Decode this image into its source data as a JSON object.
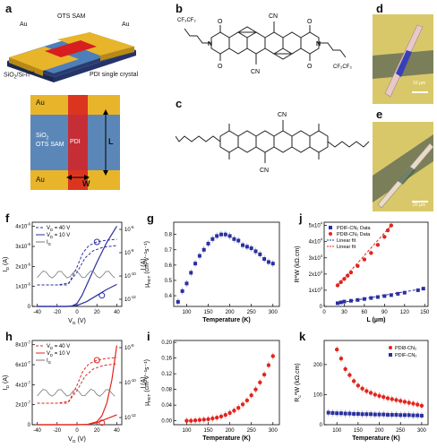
{
  "panels": {
    "a": {
      "letter": "a",
      "top_labels": {
        "au_left": "Au",
        "au_right": "Au",
        "ots_sam": "OTS SAM",
        "substrate": "SiO",
        "substrate_sub": "2",
        "substrate_rest": "/Si-n",
        "substrate_sup": "++",
        "pdi_crystal": "PDI single crystal"
      },
      "bottom_labels": {
        "au_top": "Au",
        "au_bottom": "Au",
        "sio2": "SiO",
        "sio2_sub": "2",
        "ots": "OTS SAM",
        "pdi": "PDI",
        "length": "L",
        "width": "W"
      }
    },
    "b": {
      "letter": "b",
      "substituent": "CF",
      "cn": "CN",
      "cf2": "F",
      "cf3": "F"
    },
    "c": {
      "letter": "c",
      "cn": "CN"
    },
    "d": {
      "letter": "d",
      "scale_bar": "10 µm"
    },
    "e": {
      "letter": "e",
      "scale_bar": "20 µm"
    },
    "f": {
      "letter": "f"
    },
    "g": {
      "letter": "g"
    },
    "h": {
      "letter": "h"
    },
    "i": {
      "letter": "i"
    },
    "j": {
      "letter": "j"
    },
    "k": {
      "letter": "k"
    }
  },
  "colors": {
    "au": "#e8b52a",
    "sio2": "#5b87b8",
    "pdi": "#d81e1e",
    "blue": "#2a2f9e",
    "red": "#e0261f",
    "grey": "#777777"
  },
  "chart_data": [
    {
      "id": "f",
      "type": "line",
      "xlabel": "V",
      "xlabel_sub": "G",
      "xlabel_unit": " (V)",
      "ylabel": "I",
      "ylabel_sub": "D",
      "ylabel_unit": " (A)",
      "y2label": "I (A)",
      "xticks": [
        "-40",
        "-20",
        "0",
        "20",
        "40"
      ],
      "yticks": [
        "0",
        "1x10",
        "2x10",
        "3x10",
        "4x10"
      ],
      "ytick_sup": "-6",
      "y2ticks": [
        "10",
        "10",
        "10",
        "10"
      ],
      "y2tick_sups": [
        "-6",
        "-8",
        "-10",
        "-12"
      ],
      "legend": [
        {
          "label": "V",
          "sub": "D",
          "rest": " = 40 V"
        },
        {
          "label": "V",
          "sub": "D",
          "rest": " = 10 V"
        },
        {
          "label": "I",
          "sub": "G",
          "rest": ""
        }
      ],
      "xlim": [
        -45,
        45
      ],
      "ylim": [
        0,
        4.2e-06
      ],
      "series": [
        {
          "name": "V_D = 40 V linear",
          "style": "solid",
          "x": [
            -40,
            -20,
            -10,
            -5,
            0,
            5,
            10,
            20,
            30,
            40
          ],
          "y": [
            0,
            0,
            0,
            2e-08,
            1.5e-07,
            5.5e-07,
            1.1e-06,
            2.2e-06,
            3.2e-06,
            4e-06
          ]
        },
        {
          "name": "V_D = 10 V linear",
          "style": "solid",
          "x": [
            -40,
            -20,
            -10,
            0,
            10,
            20,
            30,
            40
          ],
          "y": [
            0,
            0,
            0,
            5e-08,
            2.5e-07,
            5.5e-07,
            8.5e-07,
            1.1e-06
          ]
        }
      ]
    },
    {
      "id": "g",
      "type": "scatter",
      "xlabel": "Temperature (K)",
      "ylabel": "μ",
      "ylabel_sub": "FET",
      "ylabel_unit": " (cm²V⁻¹s⁻¹)",
      "xticks": [
        "100",
        "150",
        "200",
        "250",
        "300"
      ],
      "yticks": [
        "0.4",
        "0.5",
        "0.6",
        "0.7",
        "0.8"
      ],
      "xlim": [
        70,
        315
      ],
      "ylim": [
        0.33,
        0.88
      ],
      "x": [
        80,
        90,
        100,
        110,
        120,
        130,
        140,
        150,
        160,
        170,
        180,
        190,
        200,
        210,
        220,
        230,
        240,
        250,
        260,
        270,
        280,
        290,
        300
      ],
      "y": [
        0.36,
        0.43,
        0.48,
        0.55,
        0.61,
        0.66,
        0.7,
        0.74,
        0.77,
        0.79,
        0.8,
        0.8,
        0.79,
        0.77,
        0.76,
        0.73,
        0.72,
        0.71,
        0.69,
        0.67,
        0.64,
        0.62,
        0.61
      ]
    },
    {
      "id": "h",
      "type": "line",
      "xlabel": "V",
      "xlabel_sub": "G",
      "xlabel_unit": " (V)",
      "ylabel": "I",
      "ylabel_sub": "D",
      "ylabel_unit": " (A)",
      "y2label": "I (A)",
      "xticks": [
        "-40",
        "-20",
        "0",
        "20",
        "40"
      ],
      "yticks": [
        "0",
        "2x10",
        "4x10",
        "6x10",
        "8x10"
      ],
      "ytick_sup": "-7",
      "y2ticks": [
        "10",
        "10",
        "10"
      ],
      "y2tick_sups": [
        "-8",
        "-10",
        "-12"
      ],
      "legend": [
        {
          "label": "V",
          "sub": "D",
          "rest": " = 40 V"
        },
        {
          "label": "V",
          "sub": "D",
          "rest": " = 10 V"
        },
        {
          "label": "I",
          "sub": "G",
          "rest": ""
        }
      ],
      "xlim": [
        -45,
        45
      ],
      "ylim": [
        0,
        8.5e-07
      ],
      "series": [
        {
          "name": "V_D = 40 V linear",
          "style": "solid",
          "x": [
            -40,
            0,
            10,
            20,
            25,
            30,
            35,
            40
          ],
          "y": [
            0,
            0,
            2e-09,
            3e-08,
            9e-08,
            2.2e-07,
            4.5e-07,
            8e-07
          ]
        },
        {
          "name": "V_D = 10 V linear",
          "style": "solid",
          "x": [
            -40,
            0,
            10,
            20,
            30,
            40
          ],
          "y": [
            0,
            0,
            2e-09,
            2e-08,
            6e-08,
            1e-07
          ]
        }
      ]
    },
    {
      "id": "i",
      "type": "scatter",
      "xlabel": "Temperature (K)",
      "ylabel": "μ",
      "ylabel_sub": "FET",
      "ylabel_unit": " (cm²V⁻¹s⁻¹)",
      "xticks": [
        "100",
        "150",
        "200",
        "250",
        "300"
      ],
      "yticks": [
        "0.00",
        "0.04",
        "0.08",
        "0.12",
        "0.16",
        "0.20"
      ],
      "xlim": [
        70,
        315
      ],
      "ylim": [
        -0.01,
        0.205
      ],
      "x": [
        100,
        110,
        120,
        130,
        140,
        150,
        160,
        170,
        180,
        190,
        200,
        210,
        220,
        230,
        240,
        250,
        260,
        270,
        280,
        290,
        300
      ],
      "y": [
        0.0,
        0.0,
        0.001,
        0.002,
        0.003,
        0.004,
        0.006,
        0.008,
        0.011,
        0.015,
        0.02,
        0.026,
        0.033,
        0.042,
        0.052,
        0.065,
        0.08,
        0.098,
        0.118,
        0.142,
        0.165
      ]
    },
    {
      "id": "j",
      "type": "scatter",
      "xlabel": "L (µm)",
      "ylabel": "R*W (kΩ.cm)",
      "xticks": [
        "0",
        "30",
        "60",
        "90",
        "120",
        "150"
      ],
      "yticks": [
        "0",
        "1x10",
        "2x10",
        "3x10",
        "4x10",
        "5x10"
      ],
      "ytick_sup": "4",
      "xlim": [
        0,
        155
      ],
      "ylim": [
        0,
        52000
      ],
      "legend": [
        "PDIF-CN₂ Data",
        "PDI8-CN₂ Data",
        "Linear fit",
        "Linear fit"
      ],
      "series": [
        {
          "name": "PDIF-CN₂ Data",
          "x": [
            20,
            25,
            30,
            40,
            50,
            60,
            70,
            80,
            90,
            100,
            110,
            120,
            140,
            148
          ],
          "y": [
            2000,
            2500,
            3000,
            3500,
            4000,
            4600,
            5200,
            5800,
            6400,
            7000,
            7800,
            8500,
            10000,
            11000
          ]
        },
        {
          "name": "PDI8-CN₂ Data",
          "x": [
            20,
            25,
            30,
            35,
            40,
            50,
            60,
            70,
            80,
            90,
            95,
            100
          ],
          "y": [
            13000,
            15000,
            17000,
            19000,
            21000,
            25000,
            29000,
            33000,
            38000,
            43000,
            47000,
            50000
          ]
        }
      ]
    },
    {
      "id": "k",
      "type": "scatter",
      "xlabel": "Temperature (K)",
      "ylabel": "R",
      "ylabel_sub": "c",
      "ylabel_unit": "*W (kΩ.cm)",
      "xticks": [
        "100",
        "150",
        "200",
        "250",
        "300"
      ],
      "yticks": [
        "0",
        "100",
        "200"
      ],
      "xlim": [
        70,
        315
      ],
      "ylim": [
        0,
        280
      ],
      "legend": [
        "PDI8-CN₂",
        "PDIF-CN₂"
      ],
      "series": [
        {
          "name": "PDI8-CN₂",
          "x": [
            100,
            110,
            120,
            130,
            140,
            150,
            160,
            170,
            180,
            190,
            200,
            210,
            220,
            230,
            240,
            250,
            260,
            270,
            280,
            290,
            300
          ],
          "y": [
            250,
            220,
            185,
            165,
            145,
            130,
            120,
            112,
            106,
            100,
            96,
            92,
            88,
            85,
            82,
            79,
            76,
            73,
            70,
            67,
            63
          ]
        },
        {
          "name": "PDIF-CN₂",
          "x": [
            80,
            90,
            100,
            110,
            120,
            130,
            140,
            150,
            160,
            170,
            180,
            190,
            200,
            210,
            220,
            230,
            240,
            250,
            260,
            270,
            280,
            290,
            300
          ],
          "y": [
            40,
            39,
            38,
            38,
            37,
            37,
            36,
            36,
            35,
            35,
            35,
            34,
            34,
            34,
            33,
            33,
            33,
            32,
            32,
            32,
            31,
            31,
            30
          ]
        }
      ]
    }
  ]
}
